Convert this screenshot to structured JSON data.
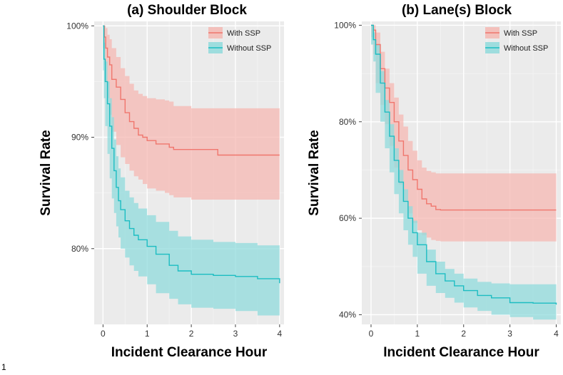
{
  "footnote": "1",
  "chart_data": [
    {
      "type": "line",
      "title": "(a) Shoulder Block",
      "xlabel": "Incident Clearance Hour",
      "ylabel": "Survival Rate",
      "xlim": [
        -0.2,
        4.1
      ],
      "ylim": [
        73.2,
        100.4
      ],
      "xticks": [
        0,
        1,
        2,
        3,
        4
      ],
      "yticks": [
        80,
        90,
        100
      ],
      "ytick_labels": [
        "80%",
        "90%",
        "100%"
      ],
      "grid": true,
      "legend_position": "top-right",
      "series": [
        {
          "name": "With SSP",
          "color": "#f0766d",
          "band_color": "#f5b8b3",
          "x": [
            0,
            0.03,
            0.06,
            0.1,
            0.15,
            0.2,
            0.3,
            0.4,
            0.5,
            0.6,
            0.7,
            0.8,
            0.9,
            1.0,
            1.2,
            1.4,
            1.5,
            1.6,
            2.0,
            2.6,
            3.0,
            4.0
          ],
          "y": [
            100,
            99.0,
            98.0,
            97.2,
            96.5,
            95.2,
            94.5,
            93.4,
            92.2,
            91.4,
            90.8,
            90.2,
            90.0,
            89.7,
            89.4,
            89.4,
            89.1,
            88.9,
            88.9,
            88.4,
            88.4,
            88.4
          ],
          "lower": [
            100,
            98.0,
            96.5,
            95.0,
            93.5,
            92.0,
            90.5,
            89.3,
            88.2,
            87.6,
            87.0,
            86.5,
            86.2,
            85.8,
            85.4,
            85.2,
            85.0,
            84.8,
            84.6,
            84.4,
            84.4,
            84.4
          ],
          "upper": [
            100,
            100,
            99.8,
            99.2,
            98.8,
            98.0,
            97.2,
            96.2,
            95.5,
            94.8,
            94.2,
            93.9,
            93.7,
            93.5,
            93.4,
            93.3,
            93.2,
            92.8,
            92.6,
            92.6,
            92.6,
            92.6
          ]
        },
        {
          "name": "Without SSP",
          "color": "#1cbdc2",
          "band_color": "#90dbdc",
          "x": [
            0,
            0.02,
            0.05,
            0.1,
            0.15,
            0.2,
            0.25,
            0.3,
            0.35,
            0.4,
            0.5,
            0.6,
            0.7,
            0.8,
            1.0,
            1.2,
            1.5,
            1.7,
            2.0,
            2.5,
            3.0,
            3.5,
            4.0
          ],
          "y": [
            100,
            97.0,
            95.0,
            93.0,
            91.0,
            89.0,
            87.0,
            85.5,
            84.3,
            83.5,
            82.5,
            81.8,
            81.2,
            80.8,
            80.2,
            79.5,
            78.5,
            78.0,
            77.7,
            77.6,
            77.5,
            77.3,
            76.9
          ],
          "lower": [
            100,
            96.0,
            93.5,
            91.0,
            88.5,
            86.3,
            84.5,
            83.2,
            82.0,
            81.0,
            80.0,
            79.2,
            78.5,
            78.0,
            77.5,
            76.8,
            76.0,
            75.5,
            75.0,
            74.7,
            74.6,
            74.4,
            74.0
          ],
          "upper": [
            100,
            98.5,
            96.8,
            95.0,
            93.5,
            91.8,
            89.8,
            88.3,
            87.2,
            86.4,
            85.2,
            84.6,
            84.1,
            83.6,
            83.0,
            82.4,
            81.6,
            81.1,
            80.8,
            80.6,
            80.5,
            80.3,
            80.2
          ]
        }
      ]
    },
    {
      "type": "line",
      "title": "(b) Lane(s) Block",
      "xlabel": "Incident Clearance Hour",
      "ylabel": "Survival Rate",
      "xlim": [
        -0.2,
        4.1
      ],
      "ylim": [
        38.0,
        100.8
      ],
      "xticks": [
        0,
        1,
        2,
        3,
        4
      ],
      "yticks": [
        40,
        60,
        80,
        100
      ],
      "ytick_labels": [
        "40%",
        "60%",
        "80%",
        "100%"
      ],
      "grid": true,
      "legend_position": "top-right",
      "series": [
        {
          "name": "With SSP",
          "color": "#f0766d",
          "band_color": "#f5b8b3",
          "x": [
            0,
            0.05,
            0.1,
            0.2,
            0.3,
            0.4,
            0.5,
            0.6,
            0.7,
            0.8,
            0.9,
            1.0,
            1.1,
            1.2,
            1.3,
            1.4,
            1.5,
            2.0,
            3.0,
            4.0
          ],
          "y": [
            100,
            99.0,
            96.0,
            91.0,
            87.0,
            84.0,
            80.0,
            76.0,
            73.0,
            70.0,
            68.0,
            66.0,
            64.0,
            63.0,
            62.5,
            61.8,
            61.7,
            61.7,
            61.7,
            61.7
          ],
          "lower": [
            100,
            97.5,
            94.0,
            88.0,
            83.5,
            79.5,
            75.0,
            70.5,
            67.0,
            63.5,
            61.0,
            59.0,
            57.5,
            56.5,
            56.0,
            55.5,
            55.3,
            55.2,
            55.2,
            55.2
          ],
          "upper": [
            100,
            100,
            98.5,
            94.5,
            91.0,
            88.0,
            85.0,
            81.5,
            79.0,
            76.0,
            74.0,
            72.0,
            70.5,
            69.8,
            69.5,
            69.3,
            69.3,
            69.3,
            69.3,
            69.3
          ]
        },
        {
          "name": "Without SSP",
          "color": "#1cbdc2",
          "band_color": "#90dbdc",
          "x": [
            0,
            0.05,
            0.1,
            0.2,
            0.3,
            0.4,
            0.5,
            0.6,
            0.7,
            0.8,
            0.9,
            1.0,
            1.2,
            1.4,
            1.6,
            1.8,
            2.0,
            2.3,
            2.6,
            3.0,
            3.5,
            4.0
          ],
          "y": [
            100,
            97.0,
            94.0,
            88.0,
            82.0,
            77.0,
            72.0,
            67.5,
            63.5,
            60.0,
            57.0,
            54.5,
            51.0,
            48.5,
            47.0,
            46.0,
            45.0,
            44.0,
            43.5,
            42.5,
            42.4,
            42.1
          ],
          "lower": [
            100,
            96.0,
            92.5,
            86.0,
            80.0,
            74.5,
            69.5,
            65.0,
            61.0,
            57.5,
            54.5,
            52.0,
            48.5,
            46.0,
            44.5,
            43.5,
            42.5,
            41.5,
            40.8,
            40.0,
            39.5,
            39.0
          ],
          "upper": [
            100,
            98.5,
            96.0,
            90.5,
            84.5,
            79.5,
            74.5,
            70.0,
            66.0,
            62.5,
            59.5,
            57.0,
            53.5,
            51.0,
            49.5,
            48.5,
            47.5,
            46.8,
            46.5,
            46.3,
            46.3,
            46.3
          ]
        }
      ]
    }
  ]
}
